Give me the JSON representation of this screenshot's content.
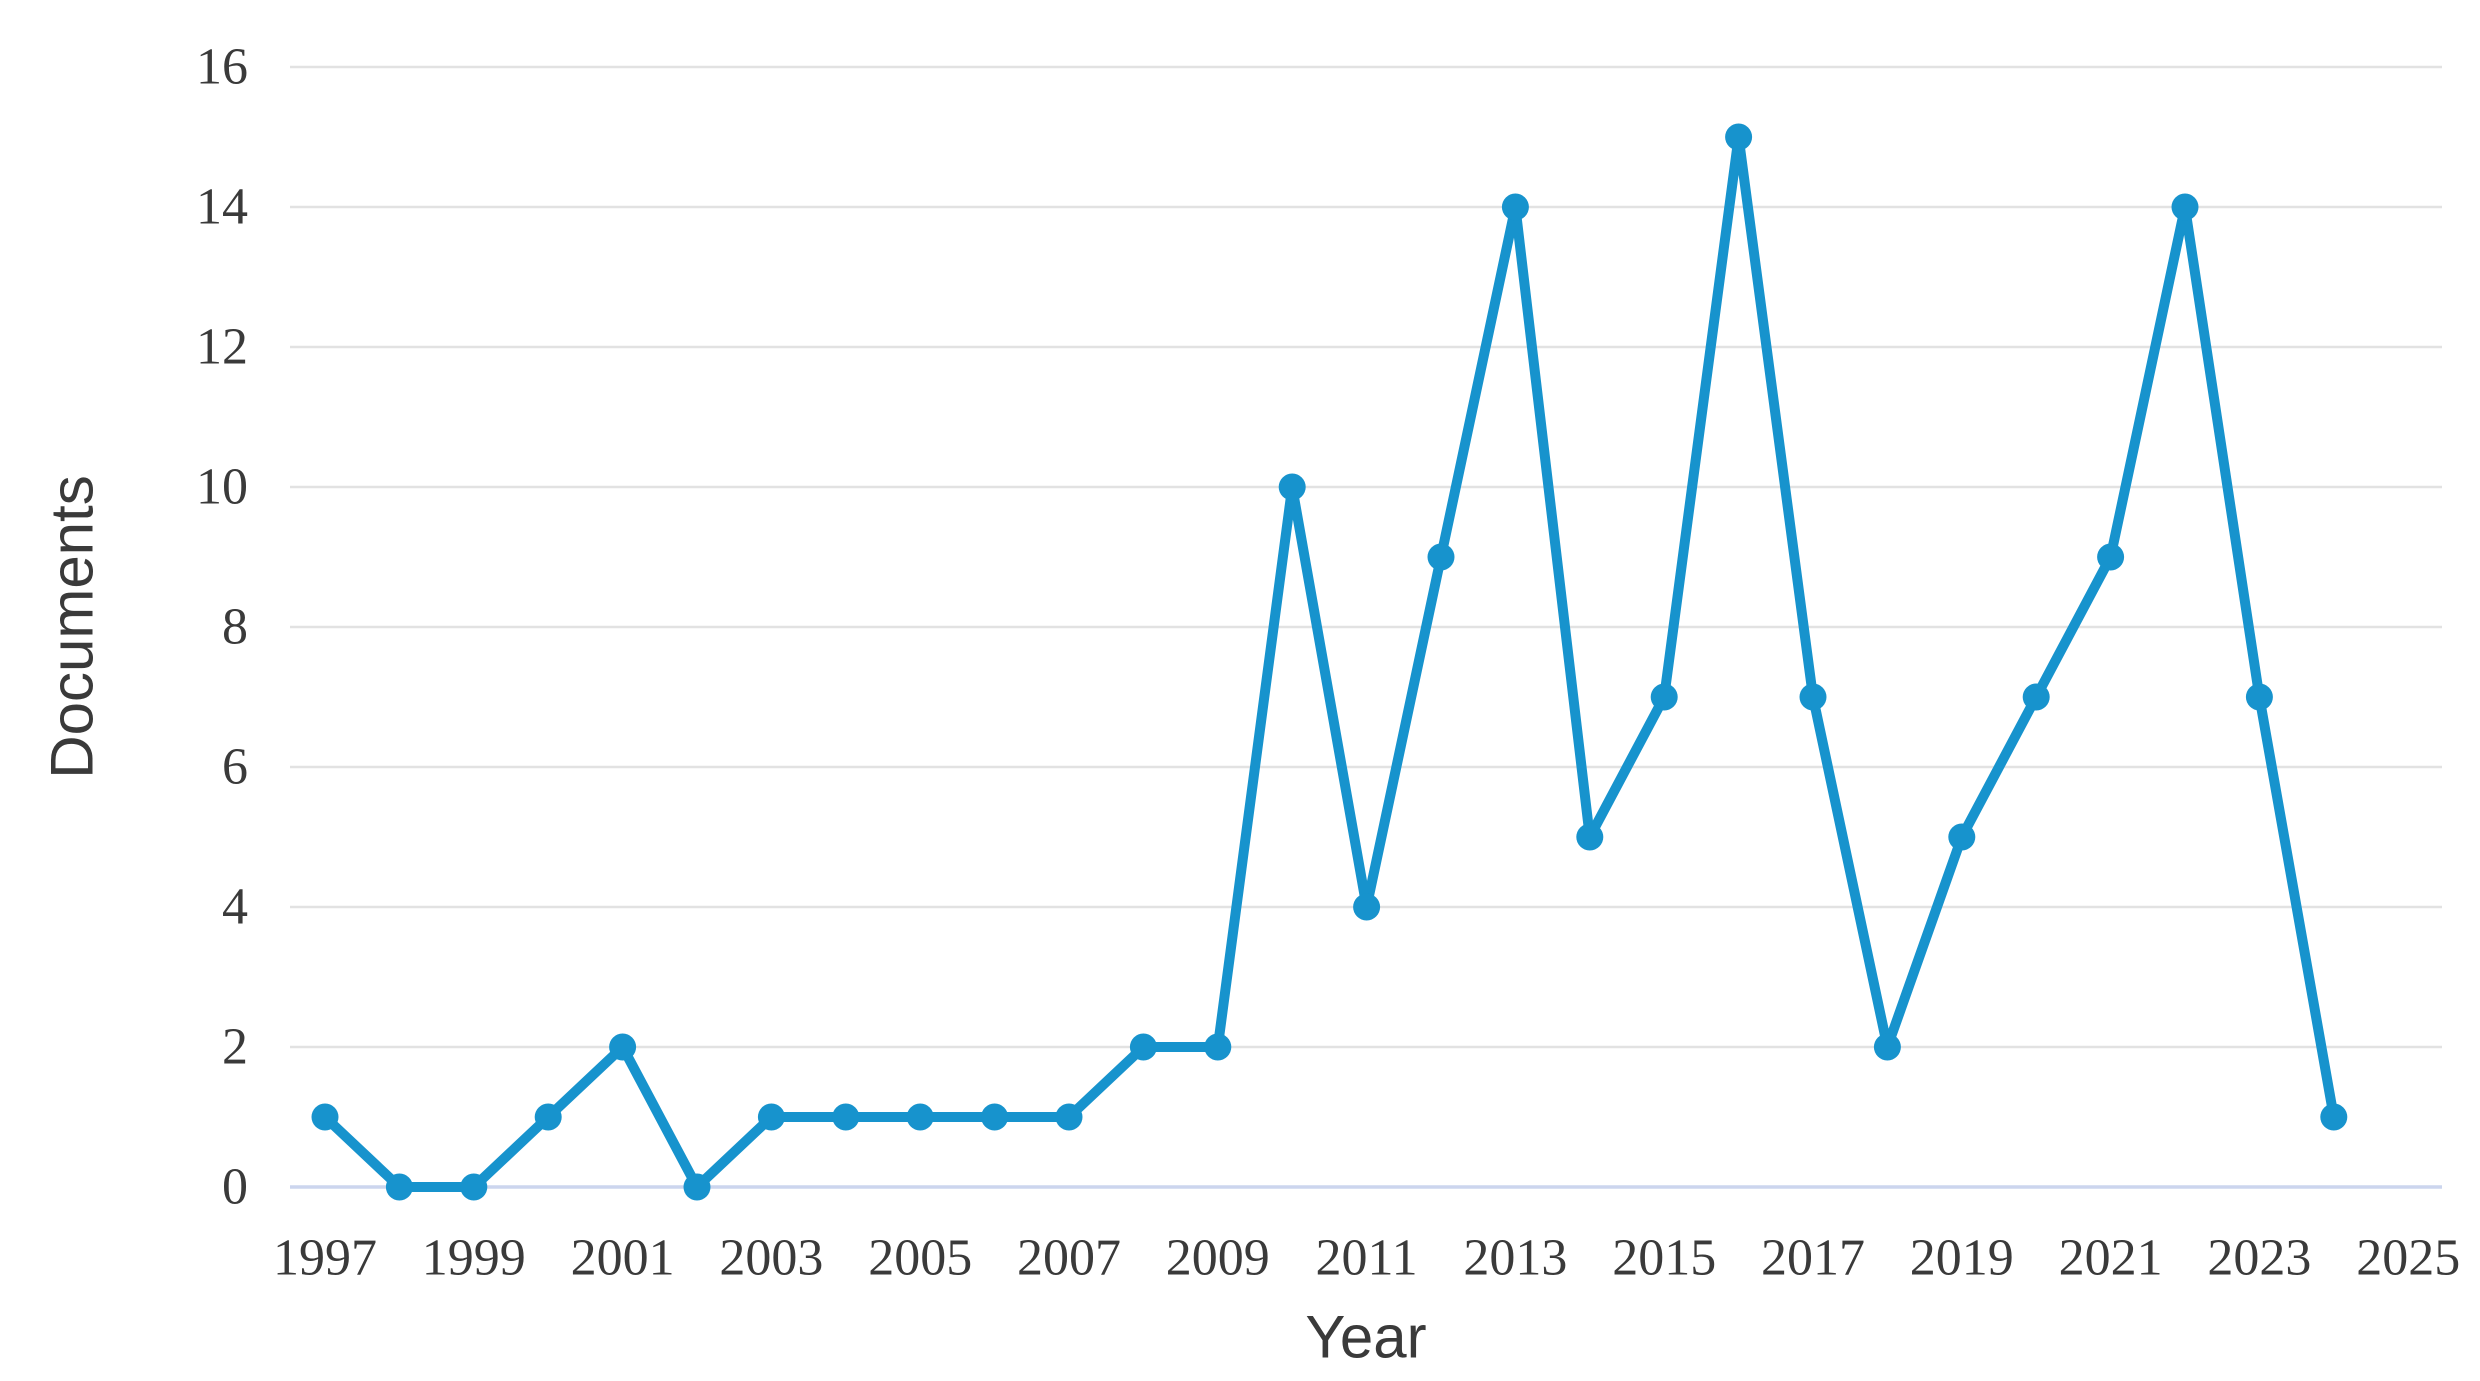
{
  "chart_data": {
    "type": "line",
    "title": "",
    "xlabel": "Year",
    "ylabel": "Documents",
    "series_name": "Documents",
    "x": [
      1997,
      1998,
      1999,
      2000,
      2001,
      2002,
      2003,
      2004,
      2005,
      2006,
      2007,
      2008,
      2009,
      2010,
      2011,
      2012,
      2013,
      2014,
      2015,
      2016,
      2017,
      2018,
      2019,
      2020,
      2021,
      2022,
      2023,
      2024
    ],
    "values": [
      1,
      0,
      0,
      1,
      2,
      0,
      1,
      1,
      1,
      1,
      1,
      2,
      2,
      10,
      4,
      9,
      14,
      5,
      7,
      15,
      7,
      2,
      5,
      7,
      9,
      14,
      7,
      1
    ],
    "x_tick_labels": [
      "1997",
      "1999",
      "2001",
      "2003",
      "2005",
      "2007",
      "2009",
      "2011",
      "2013",
      "2015",
      "2017",
      "2019",
      "2021",
      "2023",
      "2025"
    ],
    "y_ticks": [
      0,
      2,
      4,
      6,
      8,
      10,
      12,
      14,
      16
    ],
    "xlim": [
      1996.5,
      2025.5
    ],
    "ylim": [
      0,
      16
    ],
    "grid": "horizontal",
    "legend_position": "none",
    "marker": "circle",
    "colors": {
      "line": "#1793cd",
      "marker": "#1793cd",
      "gridline": "#e2e2e2",
      "zero_line": "#ccd5ee",
      "text": "#3a3a3a"
    }
  }
}
